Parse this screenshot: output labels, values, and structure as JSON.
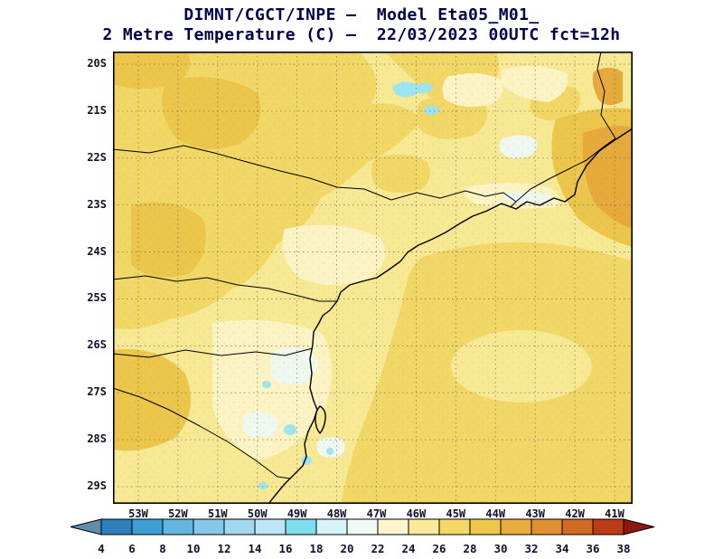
{
  "title": {
    "line1": "DIMNT/CGCT/INPE —  Model Eta05_M01_",
    "line2": "2 Metre Temperature (C) —  22/03/2023 00UTC fct=12h"
  },
  "map": {
    "lat_labels": [
      "20S",
      "21S",
      "22S",
      "23S",
      "24S",
      "25S",
      "26S",
      "27S",
      "28S",
      "29S"
    ],
    "lon_labels": [
      "53W",
      "52W",
      "51W",
      "50W",
      "49W",
      "48W",
      "47W",
      "46W",
      "45W",
      "44W",
      "43W",
      "42W",
      "41W"
    ]
  },
  "colorbar": {
    "units": "C",
    "tick_labels": [
      "4",
      "6",
      "8",
      "10",
      "12",
      "14",
      "16",
      "18",
      "20",
      "22",
      "24",
      "26",
      "28",
      "30",
      "32",
      "34",
      "36",
      "38"
    ],
    "segments": [
      {
        "range": "<4",
        "color": "#5f8ea8"
      },
      {
        "range": "4-6",
        "color": "#2d7fbd"
      },
      {
        "range": "6-8",
        "color": "#3d9ed6"
      },
      {
        "range": "8-10",
        "color": "#62b6e0"
      },
      {
        "range": "10-12",
        "color": "#84c8ea"
      },
      {
        "range": "12-14",
        "color": "#a2d8f0"
      },
      {
        "range": "14-16",
        "color": "#bce6f5"
      },
      {
        "range": "16-18",
        "color": "#7edeee"
      },
      {
        "range": "18-20",
        "color": "#d6f3f8"
      },
      {
        "range": "20-22",
        "color": "#eefaf2"
      },
      {
        "range": "22-24",
        "color": "#fdf6cd"
      },
      {
        "range": "24-26",
        "color": "#f8e99b"
      },
      {
        "range": "26-28",
        "color": "#f3d868"
      },
      {
        "range": "28-30",
        "color": "#eec64c"
      },
      {
        "range": "30-32",
        "color": "#e9ad3e"
      },
      {
        "range": "32-34",
        "color": "#e09030"
      },
      {
        "range": "34-36",
        "color": "#d16a22"
      },
      {
        "range": "36-38",
        "color": "#bc3c16"
      },
      {
        "range": ">38",
        "color": "#8e180c"
      }
    ]
  }
}
